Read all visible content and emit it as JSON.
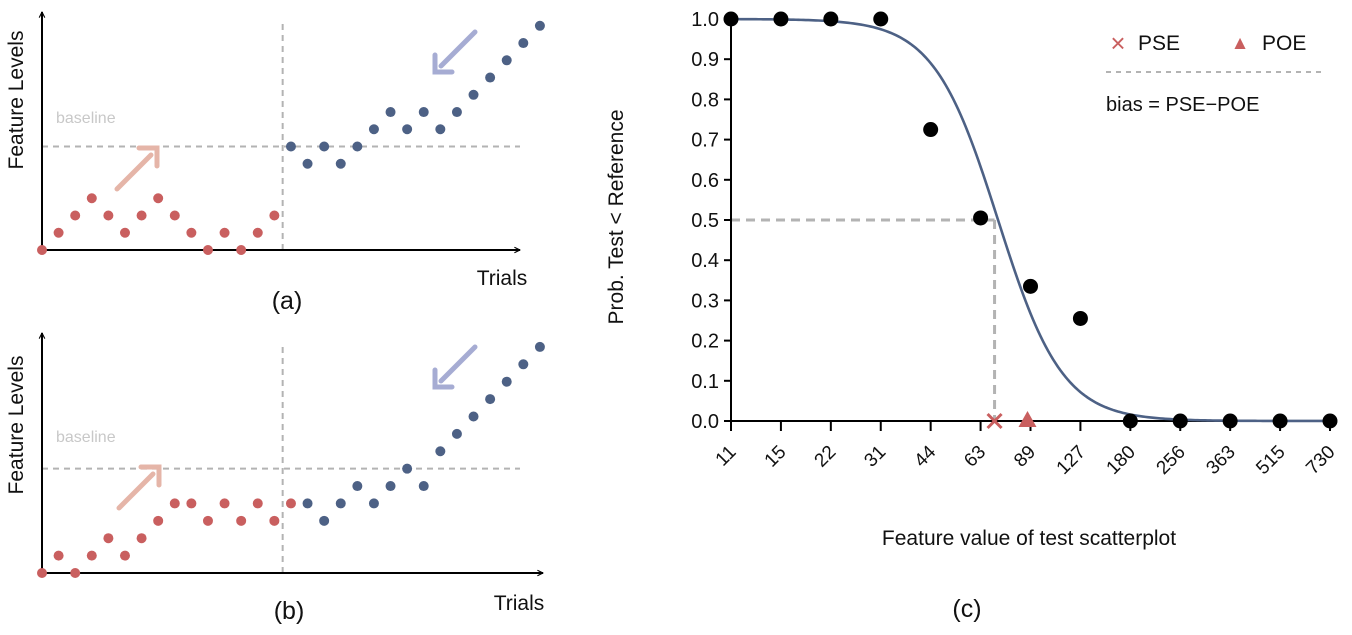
{
  "colors": {
    "ascending": "#c95f5f",
    "descending": "#4d6185",
    "curve": "#4d6185",
    "points": "#000000",
    "guide": "#b3b3b3",
    "baseline_text": "#c8c8c8",
    "up_arrow": "#e5b5a8",
    "down_arrow": "#a6acd3",
    "axis": "#000000",
    "marker": "#c95f5f"
  },
  "panel_a": {
    "caption": "(a)",
    "ylabel": "Feature Levels",
    "xlabel": "Trials",
    "baseline_label": "baseline",
    "baseline_level": 6,
    "switch_trial": 14.5,
    "ymax": 13.8,
    "xmax": 28.8,
    "ascending": [
      0,
      1,
      2,
      3,
      2,
      1,
      2,
      3,
      2,
      1,
      0,
      1,
      0,
      1,
      2
    ],
    "descending": [
      6,
      5,
      6,
      5,
      6,
      7,
      8,
      7,
      8,
      7,
      8,
      9,
      10,
      11,
      12,
      13
    ]
  },
  "panel_b": {
    "caption": "(b)",
    "ylabel": "Feature Levels",
    "xlabel": "Trials",
    "baseline_label": "baseline",
    "baseline_level": 6,
    "switch_trial": 14.5,
    "ymax": 13.8,
    "xmax": 28.8,
    "ascending": [
      0,
      1,
      0,
      1,
      2,
      1,
      2,
      3,
      4,
      4,
      3,
      4,
      3,
      4,
      3,
      4
    ],
    "descending": [
      4,
      3,
      4,
      5,
      4,
      5,
      6,
      5,
      7,
      8,
      9,
      10,
      11,
      12,
      13
    ]
  },
  "chart_data": {
    "type": "scatter",
    "caption": "(c)",
    "xlabel": "Feature value of test scatterplot",
    "ylabel": "Prob. Test < Reference",
    "categories": [
      "11",
      "15",
      "22",
      "31",
      "44",
      "63",
      "89",
      "127",
      "180",
      "256",
      "363",
      "515",
      "730"
    ],
    "yticks": [
      "0.0",
      "0.1",
      "0.2",
      "0.3",
      "0.4",
      "0.5",
      "0.6",
      "0.7",
      "0.8",
      "0.9",
      "1.0"
    ],
    "ylim": [
      0,
      1
    ],
    "points": [
      1.0,
      1.0,
      1.0,
      1.0,
      0.725,
      0.505,
      0.335,
      0.255,
      0.0,
      0.0,
      0.0,
      0.0,
      0.0
    ],
    "fit_curve": {
      "model": "logistic",
      "midpoint_index": 5.35,
      "slope": 1.55
    },
    "pse_index": 5.28,
    "poe_index": 5.94,
    "legend": {
      "pse_symbol": "×",
      "pse_label": "PSE",
      "poe_symbol": "▲",
      "poe_label": "POE",
      "formula": "bias = PSE−POE"
    }
  }
}
